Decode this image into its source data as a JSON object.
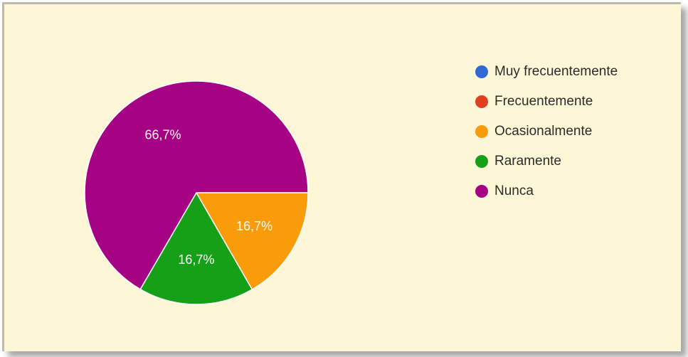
{
  "chart_data": {
    "type": "pie",
    "slices": [
      {
        "name": "Muy frecuentemente",
        "value": 0,
        "color": "#2f6ad4"
      },
      {
        "name": "Frecuentemente",
        "value": 0,
        "color": "#e0401f"
      },
      {
        "name": "Ocasionalmente",
        "value": 16.7,
        "label": "16,7%",
        "color": "#fa9b0a"
      },
      {
        "name": "Raramente",
        "value": 16.7,
        "label": "16,7%",
        "color": "#16a018"
      },
      {
        "name": "Nunca",
        "value": 66.7,
        "label": "66,7%",
        "color": "#a50384"
      }
    ],
    "legend_position": "top-right"
  },
  "colors": {
    "background": "#fef7d7",
    "label_text": "#ffffff"
  }
}
